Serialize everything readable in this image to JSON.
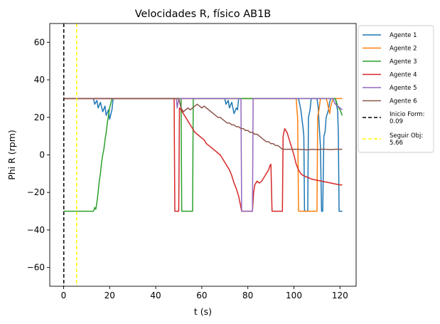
{
  "chart_data": {
    "type": "line",
    "title": "Velocidades R, físico AB1B",
    "xlabel": "t (s)",
    "ylabel": "Phi R (rpm)",
    "xlim": [
      -6,
      127
    ],
    "ylim": [
      -70,
      70
    ],
    "xticks": [
      0,
      20,
      40,
      60,
      80,
      100,
      120
    ],
    "yticks": [
      -60,
      -40,
      -20,
      0,
      20,
      40,
      60
    ],
    "grid": false,
    "legend_position": "outside-right",
    "series": [
      {
        "name": "Agente 1",
        "color": "#1f77b4",
        "points": [
          [
            0,
            30
          ],
          [
            13,
            30
          ],
          [
            13.5,
            27
          ],
          [
            14.5,
            29
          ],
          [
            15,
            25
          ],
          [
            16,
            28
          ],
          [
            17,
            23
          ],
          [
            18,
            26
          ],
          [
            18.5,
            21
          ],
          [
            19.5,
            24
          ],
          [
            20,
            19
          ],
          [
            21,
            24
          ],
          [
            21.5,
            30
          ],
          [
            70,
            30
          ],
          [
            70.5,
            27
          ],
          [
            71.5,
            29
          ],
          [
            72,
            25
          ],
          [
            73,
            28
          ],
          [
            74,
            22
          ],
          [
            75,
            25
          ],
          [
            75.5,
            24
          ],
          [
            76,
            30
          ],
          [
            102,
            30
          ],
          [
            102.5,
            27
          ],
          [
            103,
            24
          ],
          [
            103.5,
            19
          ],
          [
            104,
            14
          ],
          [
            104.3,
            10
          ],
          [
            104.6,
            -30
          ],
          [
            106,
            -30
          ],
          [
            106.3,
            20
          ],
          [
            107,
            24
          ],
          [
            107.5,
            30
          ],
          [
            110,
            30
          ],
          [
            110.5,
            26
          ],
          [
            111,
            15
          ],
          [
            111.5,
            5
          ],
          [
            112,
            -30
          ],
          [
            112.5,
            -30
          ],
          [
            113,
            10
          ],
          [
            113.5,
            12
          ],
          [
            114,
            20
          ],
          [
            115,
            24
          ],
          [
            115.5,
            28
          ],
          [
            116,
            30
          ],
          [
            118,
            30
          ],
          [
            118.5,
            27
          ],
          [
            119,
            23
          ],
          [
            119.3,
            10
          ],
          [
            119.6,
            -30
          ],
          [
            121,
            -30
          ]
        ]
      },
      {
        "name": "Agente 2",
        "color": "#ff7f0e",
        "points": [
          [
            0,
            30
          ],
          [
            101,
            30
          ],
          [
            101.3,
            24
          ],
          [
            101.6,
            20
          ],
          [
            102,
            -30
          ],
          [
            110,
            -30
          ],
          [
            110.3,
            20
          ],
          [
            111,
            25
          ],
          [
            111.5,
            30
          ],
          [
            114,
            30
          ],
          [
            114.5,
            28
          ],
          [
            115,
            25
          ],
          [
            115.5,
            22
          ],
          [
            116,
            26
          ],
          [
            116.5,
            28
          ],
          [
            117,
            30
          ],
          [
            121,
            30
          ]
        ]
      },
      {
        "name": "Agente 3",
        "color": "#2ca02c",
        "points": [
          [
            0,
            -30
          ],
          [
            13,
            -30
          ],
          [
            13.5,
            -28
          ],
          [
            14,
            -29
          ],
          [
            14.5,
            -25
          ],
          [
            15,
            -20
          ],
          [
            15.5,
            -14
          ],
          [
            16,
            -10
          ],
          [
            16.5,
            -4
          ],
          [
            17,
            0
          ],
          [
            17.5,
            3
          ],
          [
            18,
            8
          ],
          [
            18.5,
            12
          ],
          [
            19,
            17
          ],
          [
            19.5,
            21
          ],
          [
            20,
            25
          ],
          [
            21,
            30
          ],
          [
            51,
            30
          ],
          [
            51.3,
            -30
          ],
          [
            56,
            -30
          ],
          [
            56.3,
            30
          ],
          [
            84,
            30
          ],
          [
            118,
            30
          ],
          [
            118.5,
            28
          ],
          [
            119,
            26
          ],
          [
            120,
            24
          ],
          [
            121,
            21
          ]
        ]
      },
      {
        "name": "Agente 4",
        "color": "#d62728",
        "points": [
          [
            0,
            30
          ],
          [
            48,
            30
          ],
          [
            48.3,
            -30
          ],
          [
            50,
            -30
          ],
          [
            50.3,
            25
          ],
          [
            51,
            24
          ],
          [
            52,
            22
          ],
          [
            53,
            20
          ],
          [
            54,
            18
          ],
          [
            55,
            16
          ],
          [
            56,
            14
          ],
          [
            57,
            12
          ],
          [
            58,
            11
          ],
          [
            59,
            10
          ],
          [
            60,
            9
          ],
          [
            61,
            8
          ],
          [
            62,
            6
          ],
          [
            63,
            5
          ],
          [
            64,
            4
          ],
          [
            65,
            3
          ],
          [
            66,
            2
          ],
          [
            67,
            1
          ],
          [
            68,
            0
          ],
          [
            69,
            -2
          ],
          [
            70,
            -4
          ],
          [
            71,
            -6
          ],
          [
            72,
            -8
          ],
          [
            73,
            -11
          ],
          [
            74,
            -15
          ],
          [
            75,
            -18
          ],
          [
            76,
            -22
          ],
          [
            77,
            -28
          ],
          [
            77.3,
            -30
          ],
          [
            82,
            -30
          ],
          [
            82.5,
            -20
          ],
          [
            83,
            -16
          ],
          [
            84,
            -14
          ],
          [
            85,
            -15
          ],
          [
            86,
            -14
          ],
          [
            87,
            -12
          ],
          [
            88,
            -10
          ],
          [
            89,
            -8
          ],
          [
            89.5,
            -6
          ],
          [
            90,
            -5
          ],
          [
            90.5,
            -30
          ],
          [
            95,
            -30
          ],
          [
            95.3,
            10
          ],
          [
            96,
            14
          ],
          [
            97,
            12
          ],
          [
            98,
            8
          ],
          [
            99,
            4
          ],
          [
            100,
            0
          ],
          [
            101,
            -5
          ],
          [
            102,
            -8
          ],
          [
            103,
            -10
          ],
          [
            104,
            -11
          ],
          [
            106,
            -12
          ],
          [
            108,
            -13
          ],
          [
            110,
            -13.5
          ],
          [
            112,
            -14
          ],
          [
            114,
            -14.5
          ],
          [
            116,
            -15
          ],
          [
            118,
            -15.5
          ],
          [
            120,
            -16
          ],
          [
            121,
            -16
          ]
        ]
      },
      {
        "name": "Agente 5",
        "color": "#9467bd",
        "points": [
          [
            0,
            30
          ],
          [
            49,
            30
          ],
          [
            49.3,
            25
          ],
          [
            50,
            30
          ],
          [
            77,
            30
          ],
          [
            77.3,
            -30
          ],
          [
            82,
            -30
          ],
          [
            82.3,
            30
          ],
          [
            117,
            30
          ],
          [
            117.5,
            28
          ],
          [
            118,
            27
          ],
          [
            119,
            26
          ],
          [
            120,
            25
          ],
          [
            121,
            24
          ]
        ]
      },
      {
        "name": "Agente 6",
        "color": "#8c564b",
        "points": [
          [
            0,
            30
          ],
          [
            50,
            30
          ],
          [
            51,
            25
          ],
          [
            52,
            23
          ],
          [
            53,
            24
          ],
          [
            54,
            25
          ],
          [
            55,
            24
          ],
          [
            56,
            25
          ],
          [
            57,
            26
          ],
          [
            58,
            27
          ],
          [
            59,
            26
          ],
          [
            60,
            25
          ],
          [
            61,
            26
          ],
          [
            62,
            25
          ],
          [
            63,
            24
          ],
          [
            64,
            23
          ],
          [
            65,
            22
          ],
          [
            66,
            21
          ],
          [
            67,
            20
          ],
          [
            68,
            20
          ],
          [
            69,
            19
          ],
          [
            70,
            18
          ],
          [
            71,
            17
          ],
          [
            72,
            17
          ],
          [
            73,
            16
          ],
          [
            74,
            16
          ],
          [
            75,
            15
          ],
          [
            76,
            15
          ],
          [
            77,
            14
          ],
          [
            78,
            14
          ],
          [
            79,
            13
          ],
          [
            80,
            13
          ],
          [
            81,
            12
          ],
          [
            82,
            12
          ],
          [
            83,
            11
          ],
          [
            84,
            11
          ],
          [
            85,
            10
          ],
          [
            86,
            9
          ],
          [
            87,
            8
          ],
          [
            88,
            7
          ],
          [
            89,
            7
          ],
          [
            90,
            6
          ],
          [
            91,
            6
          ],
          [
            92,
            5
          ],
          [
            93,
            5
          ],
          [
            94,
            4
          ],
          [
            95,
            3
          ],
          [
            96,
            3
          ],
          [
            98,
            3
          ],
          [
            100,
            3
          ],
          [
            102,
            3
          ],
          [
            104,
            2.8
          ],
          [
            106,
            2.7
          ],
          [
            108,
            3
          ],
          [
            110,
            2.8
          ],
          [
            112,
            3
          ],
          [
            114,
            3
          ],
          [
            116,
            2.8
          ],
          [
            118,
            3
          ],
          [
            120,
            3
          ],
          [
            121,
            3
          ]
        ]
      }
    ],
    "vlines": [
      {
        "name": "Inicio Form:\n0.09",
        "label_line1": "Inicio Form:",
        "label_line2": "0.09",
        "x": 0.09,
        "color": "#000000",
        "style": "dashed"
      },
      {
        "name": "Seguir Obj:\n5.66",
        "label_line1": "Seguir Obj:",
        "label_line2": "5.66",
        "x": 5.66,
        "color": "#ffff00",
        "style": "dashed"
      }
    ]
  }
}
